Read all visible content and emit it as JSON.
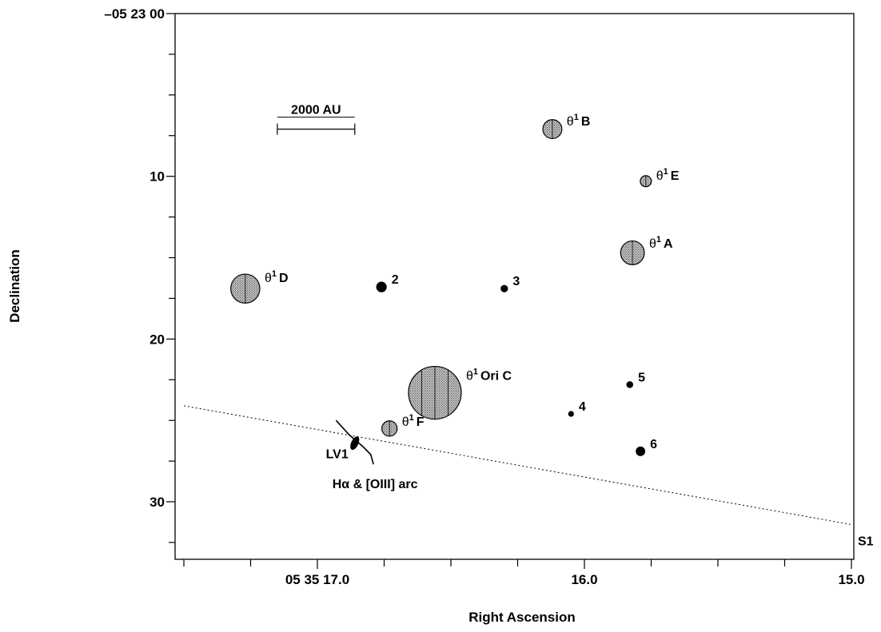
{
  "chart_data": {
    "type": "scatter",
    "title": "",
    "xlabel": "Right Ascension",
    "ylabel": "Declination",
    "x_unit": "seconds of RA",
    "y_unit": "arcsec",
    "xlim": [
      17.5,
      15.0
    ],
    "ylim": [
      0,
      34
    ],
    "x_ticks": [
      {
        "value": 17.0,
        "label": "05 35 17.0"
      },
      {
        "value": 16.0,
        "label": "16.0"
      },
      {
        "value": 15.0,
        "label": "15.0"
      }
    ],
    "y_ticks": [
      {
        "value": 0,
        "label": "–05 23 00"
      },
      {
        "value": 10,
        "label": "10"
      },
      {
        "value": 20,
        "label": "20"
      },
      {
        "value": 30,
        "label": "30"
      }
    ],
    "stars": [
      {
        "id": "theta1-b",
        "greek": "θ",
        "sup": "1",
        "name": "B",
        "ra": 16.12,
        "dec": 7.1,
        "size": 0.36,
        "fill": "#999999"
      },
      {
        "id": "theta1-e",
        "greek": "θ",
        "sup": "1",
        "name": "E",
        "ra": 15.77,
        "dec": 10.3,
        "size": 0.21,
        "fill": "#aaaaaa"
      },
      {
        "id": "theta1-a",
        "greek": "θ",
        "sup": "1",
        "name": "A",
        "ra": 15.82,
        "dec": 14.7,
        "size": 0.45,
        "fill": "#999999"
      },
      {
        "id": "theta1-d",
        "greek": "θ",
        "sup": "1",
        "name": "D",
        "ra": 17.27,
        "dec": 16.9,
        "size": 0.55,
        "fill": "#999999"
      },
      {
        "id": "theta1-ori-c",
        "greek": "θ",
        "sup": "1",
        "name": "Ori C",
        "ra": 16.56,
        "dec": 23.3,
        "size": 1.0,
        "fill": "#a8a8a8"
      },
      {
        "id": "theta1-f",
        "greek": "θ",
        "sup": "1",
        "name": "F",
        "ra": 16.73,
        "dec": 25.5,
        "size": 0.29,
        "fill": "#aaaaaa"
      }
    ],
    "sources": [
      {
        "label": "2",
        "ra": 16.76,
        "dec": 16.8,
        "size": 0.2
      },
      {
        "label": "3",
        "ra": 16.3,
        "dec": 16.9,
        "size": 0.14
      },
      {
        "label": "4",
        "ra": 16.05,
        "dec": 24.6,
        "size": 0.11
      },
      {
        "label": "5",
        "ra": 15.83,
        "dec": 22.8,
        "size": 0.13
      },
      {
        "label": "6",
        "ra": 15.79,
        "dec": 26.9,
        "size": 0.18
      }
    ],
    "lv1": {
      "label": "LV1",
      "ra": 16.86,
      "dec": 26.4
    },
    "arc": {
      "label": "Hα & [OIII] arc",
      "points": [
        [
          16.93,
          25.0
        ],
        [
          16.88,
          25.9
        ],
        [
          16.83,
          26.6
        ],
        [
          16.8,
          27.1
        ],
        [
          16.79,
          27.7
        ]
      ]
    },
    "s1_line": {
      "label": "S1",
      "start": [
        17.5,
        24.1
      ],
      "end": [
        15.0,
        31.4
      ]
    },
    "scale_bar": {
      "label": "2000 AU",
      "from_ra": 17.15,
      "to_ra": 16.86,
      "dec": 7.1
    }
  }
}
